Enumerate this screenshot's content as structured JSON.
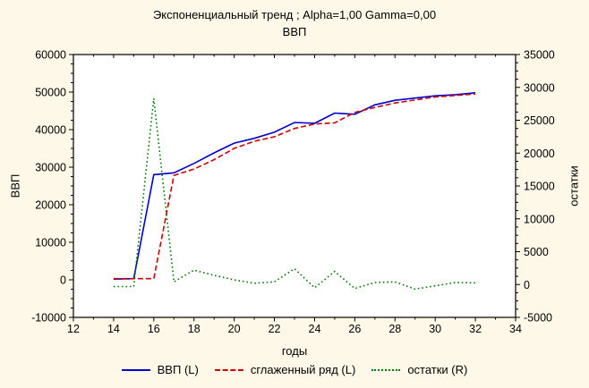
{
  "title": {
    "line1": "Экспоненциальный тренд ; Alpha=1,00 Gamma=0,00",
    "line2": "ВВП"
  },
  "colors": {
    "background": "#fdf8e8",
    "plot_background": "#ffffff",
    "grid": "#aaaaaa",
    "frame": "#000000"
  },
  "chart_data": {
    "type": "line",
    "x": [
      14,
      15,
      16,
      17,
      18,
      19,
      20,
      21,
      22,
      23,
      24,
      25,
      26,
      27,
      28,
      29,
      30,
      31,
      32
    ],
    "series": [
      {
        "name": "ВВП (L)",
        "axis": "left",
        "color": "#0000cc",
        "style": "solid",
        "values": [
          200,
          300,
          28000,
          28500,
          31000,
          33800,
          36400,
          37700,
          39300,
          41900,
          41700,
          44400,
          44100,
          46600,
          47800,
          48400,
          49000,
          49300,
          49800
        ]
      },
      {
        "name": "сглаженный ряд (L)",
        "axis": "left",
        "color": "#cc0000",
        "style": "dashed",
        "values": [
          300,
          300,
          300,
          27800,
          29500,
          32000,
          35000,
          36900,
          38100,
          40300,
          41500,
          41800,
          44600,
          45900,
          47100,
          47900,
          48700,
          49100,
          49500
        ]
      },
      {
        "name": "остатки (R)",
        "axis": "right",
        "color": "#007700",
        "style": "dotted",
        "values": [
          -300,
          -300,
          28300,
          400,
          2200,
          1400,
          700,
          200,
          400,
          2400,
          -500,
          2000,
          -600,
          300,
          400,
          -700,
          -200,
          300,
          250
        ]
      }
    ],
    "xlabel": "годы",
    "ylabel_left": "ВВП",
    "ylabel_right": "остатки",
    "xlim": [
      12,
      34
    ],
    "xticks": [
      12,
      14,
      16,
      18,
      20,
      22,
      24,
      26,
      28,
      30,
      32,
      34
    ],
    "ylim_left": [
      -10000,
      60000
    ],
    "yticks_left": [
      -10000,
      0,
      10000,
      20000,
      30000,
      40000,
      50000,
      60000
    ],
    "ylim_right": [
      -5000,
      35000
    ],
    "yticks_right": [
      -5000,
      0,
      5000,
      10000,
      15000,
      20000,
      25000,
      30000,
      35000
    ],
    "grid": true,
    "legend_position": "bottom"
  }
}
